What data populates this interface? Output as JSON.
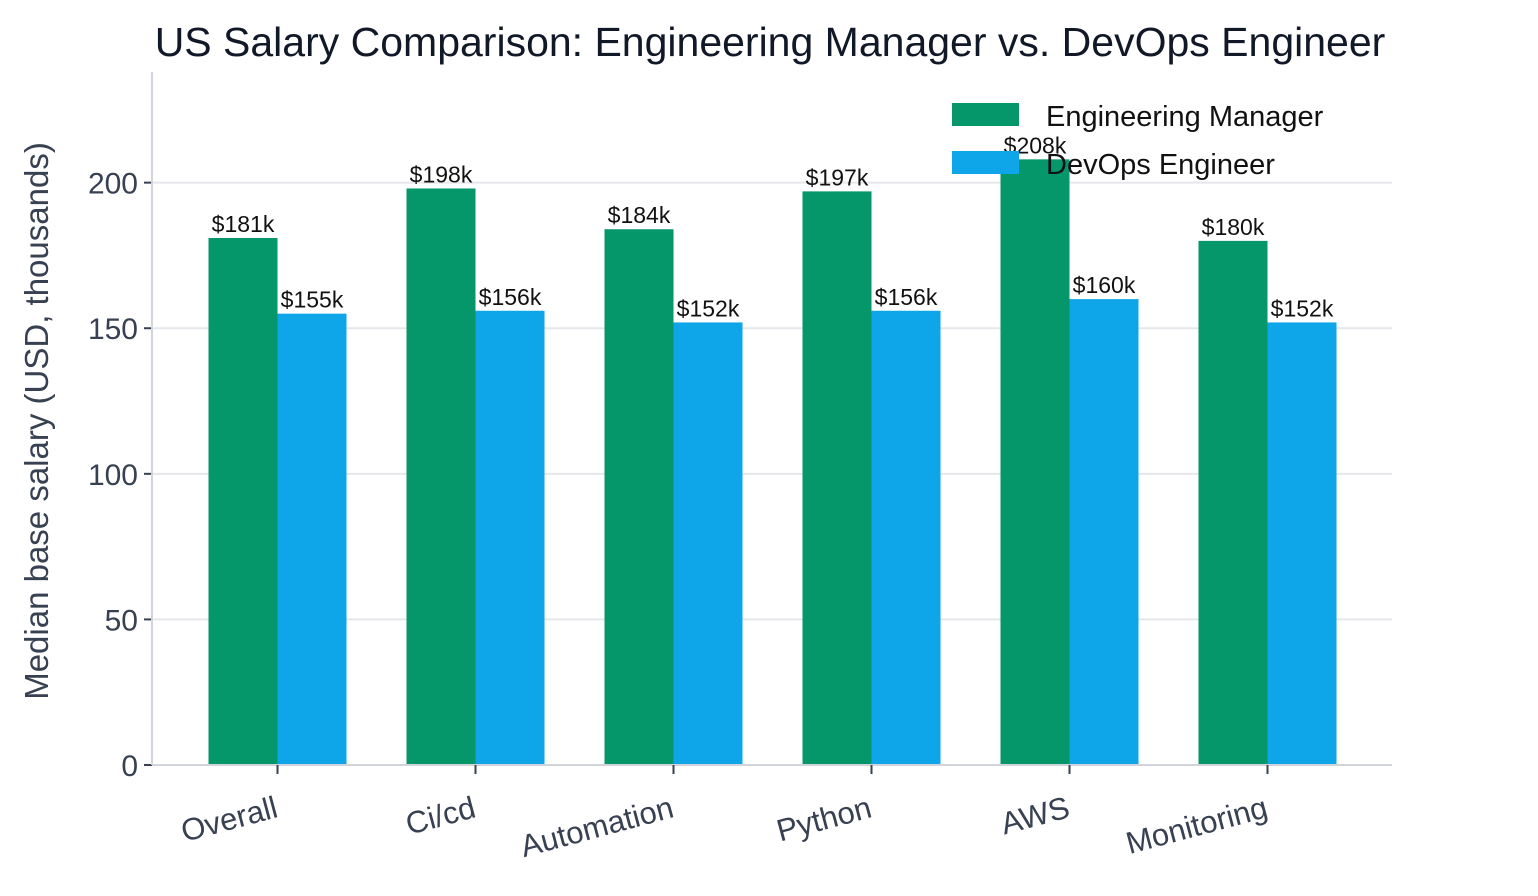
{
  "chart_data": {
    "type": "bar",
    "title": "US Salary Comparison: Engineering Manager vs. DevOps Engineer",
    "ylabel": "Median base salary (USD, thousands)",
    "xlabel": "",
    "categories": [
      "Overall",
      "Ci/cd",
      "Automation",
      "Python",
      "AWS",
      "Monitoring"
    ],
    "series": [
      {
        "name": "Engineering Manager",
        "color": "#059669",
        "values": [
          181,
          198,
          184,
          197,
          208,
          180
        ],
        "labels": [
          "$181k",
          "$198k",
          "$184k",
          "$197k",
          "$208k",
          "$180k"
        ]
      },
      {
        "name": "DevOps Engineer",
        "color": "#0ea5e9",
        "values": [
          155,
          156,
          152,
          156,
          160,
          152
        ],
        "labels": [
          "$155k",
          "$156k",
          "$152k",
          "$156k",
          "$160k",
          "$152k"
        ]
      }
    ],
    "ylim": [
      0,
      238
    ],
    "yticks": [
      0,
      50,
      100,
      150,
      200
    ],
    "grid": true,
    "legend_position": "top-right"
  }
}
